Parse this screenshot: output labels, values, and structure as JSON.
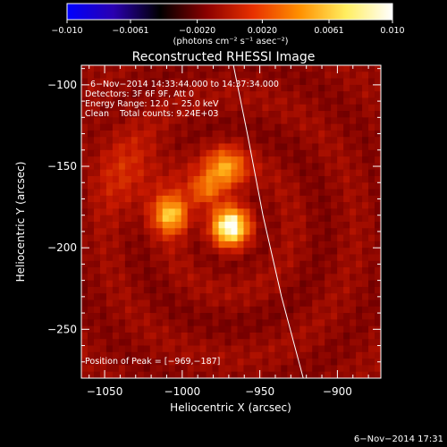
{
  "chart_data": {
    "type": "heatmap",
    "title": "Reconstructed RHESSI Image",
    "xlabel": "Heliocentric X (arcsec)",
    "ylabel": "Heliocentric Y (arcsec)",
    "xlim": [
      -1065,
      -872
    ],
    "ylim": [
      -280,
      -88
    ],
    "x_ticks": [
      -1050,
      -1000,
      -950,
      -900
    ],
    "x_tick_labels": [
      "−1050",
      "−1000",
      "−950",
      "−900"
    ],
    "y_ticks": [
      -100,
      -150,
      -200,
      -250
    ],
    "y_tick_labels": [
      "−100",
      "−150",
      "−200",
      "−250"
    ],
    "colorbar": {
      "min": -0.01,
      "max": 0.01,
      "ticks": [
        -0.01,
        -0.0061,
        -0.002,
        0.002,
        0.0061,
        0.01
      ],
      "tick_labels": [
        "−0.010",
        "−0.0061",
        "−0.0020",
        "0.0020",
        "0.0061",
        "0.010"
      ],
      "label": "(photons cm⁻² s⁻¹ asec⁻²)",
      "colormap": [
        "#0000ff",
        "#2a00b0",
        "#000000",
        "#8b0000",
        "#e83000",
        "#ff9000",
        "#ffee60",
        "#ffffff"
      ]
    },
    "annotations": [
      "6−Nov−2014 14:33:44.000 to 14:37:34.000",
      "Detectors: 3F 6F 9F, Att 0",
      "Energy Range: 12.0 − 25.0 keV",
      "Clean    Total counts: 9.24E+03"
    ],
    "peak_label": "Position of Peak = [−969,−187]",
    "peak": [
      -969,
      -187
    ],
    "sources": [
      {
        "x": -969,
        "y": -187,
        "sigma": 9,
        "amp": 1.0
      },
      {
        "x": -1007,
        "y": -180,
        "sigma": 8,
        "amp": 0.7
      },
      {
        "x": -985,
        "y": -165,
        "sigma": 7,
        "amp": 0.45
      },
      {
        "x": -972,
        "y": -152,
        "sigma": 9,
        "amp": 0.62
      },
      {
        "x": -1032,
        "y": -155,
        "sigma": 18,
        "amp": 0.22
      }
    ],
    "background_level": 0.33,
    "limb": [
      [
        -967,
        -88
      ],
      [
        -958,
        -130
      ],
      [
        -948,
        -180
      ],
      [
        -936,
        -230
      ],
      [
        -922,
        -280
      ]
    ],
    "timestamp": "6−Nov−2014 17:31"
  }
}
